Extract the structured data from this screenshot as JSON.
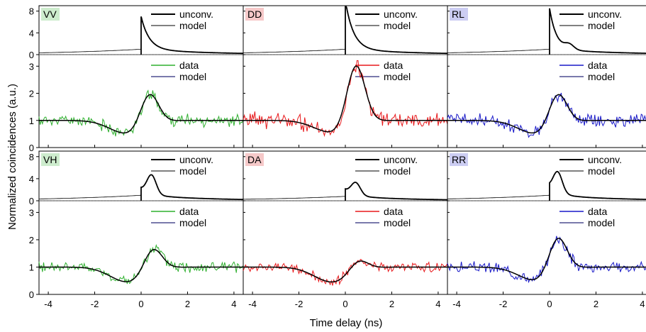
{
  "figure": {
    "xlabel": "Time delay (ns)",
    "ylabel": "Normalized coincidences (a.u.)"
  },
  "colors": {
    "model_curve": "#000000",
    "model_legend": "#2a2a7a",
    "green": "#2fb02f",
    "red": "#e8191c",
    "blue": "#1818c8",
    "green_badge": "#cdeccd",
    "red_badge": "#f6c9c9",
    "blue_badge": "#cccdf2"
  },
  "chart_data": {
    "type": "line",
    "x_ticks": [
      -4,
      -2,
      0,
      2,
      4
    ],
    "xlim": [
      -4.4,
      4.4
    ],
    "top_ylim": [
      0,
      9
    ],
    "top_ticks": [
      0,
      4,
      8
    ],
    "bottom_ylim": [
      0,
      3.4
    ],
    "bottom_ticks": [
      0,
      1,
      2,
      3
    ],
    "legend_top": [
      "unconv.",
      "model"
    ],
    "legend_bottom": [
      "data",
      "model"
    ],
    "panels": [
      {
        "label": "VV",
        "color": "green",
        "badge": "green_badge",
        "top": {
          "jump": 6.0,
          "tau": 0.35,
          "bump": 0,
          "plateau": 1.0,
          "bump_x": 0.7
        },
        "bottom": {
          "peak": 2.2,
          "peak_x": 0.35,
          "dip": 0.5,
          "base": 1.0,
          "noise": 0.13,
          "seed": 11
        }
      },
      {
        "label": "DD",
        "color": "red",
        "badge": "red_badge",
        "top": {
          "jump": 9.0,
          "tau": 0.35,
          "bump": 0,
          "plateau": 1.0,
          "bump_x": 0.7
        },
        "bottom": {
          "peak": 3.2,
          "peak_x": 0.45,
          "dip": 0.55,
          "base": 1.0,
          "noise": 0.18,
          "seed": 23
        }
      },
      {
        "label": "RL",
        "color": "blue",
        "badge": "blue_badge",
        "top": {
          "jump": 7.5,
          "tau": 0.3,
          "bump": 0.9,
          "plateau": 1.0,
          "bump_x": 0.85
        },
        "bottom": {
          "peak": 2.2,
          "peak_x": 0.35,
          "dip": 0.5,
          "base": 1.0,
          "noise": 0.14,
          "seed": 37
        }
      },
      {
        "label": "VH",
        "color": "green",
        "badge": "green_badge",
        "top": {
          "jump": 1.2,
          "tau": 0.45,
          "bump": 3.4,
          "plateau": 1.0,
          "bump_x": 0.45
        },
        "bottom": {
          "peak": 1.85,
          "peak_x": 0.5,
          "dip": 0.45,
          "base": 1.0,
          "noise": 0.12,
          "seed": 41
        }
      },
      {
        "label": "DA",
        "color": "red",
        "badge": "red_badge",
        "top": {
          "jump": 1.2,
          "tau": 0.45,
          "bump": 2.2,
          "plateau": 0.8,
          "bump_x": 0.45
        },
        "bottom": {
          "peak": 1.4,
          "peak_x": 0.55,
          "dip": 0.45,
          "base": 1.0,
          "noise": 0.1,
          "seed": 53
        }
      },
      {
        "label": "RR",
        "color": "blue",
        "badge": "blue_badge",
        "top": {
          "jump": 1.5,
          "tau": 0.45,
          "bump": 3.7,
          "plateau": 1.0,
          "bump_x": 0.35
        },
        "bottom": {
          "peak": 2.3,
          "peak_x": 0.35,
          "dip": 0.5,
          "base": 1.0,
          "noise": 0.12,
          "seed": 67
        }
      }
    ]
  }
}
